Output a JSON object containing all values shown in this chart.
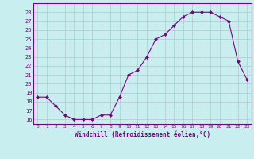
{
  "x": [
    0,
    1,
    2,
    3,
    4,
    5,
    6,
    7,
    8,
    9,
    10,
    11,
    12,
    13,
    14,
    15,
    16,
    17,
    18,
    19,
    20,
    21,
    22,
    23
  ],
  "y": [
    18.5,
    18.5,
    17.5,
    16.5,
    16.0,
    16.0,
    16.0,
    16.5,
    16.5,
    18.5,
    21.0,
    21.5,
    23.0,
    25.0,
    25.5,
    26.5,
    27.5,
    28.0,
    28.0,
    28.0,
    27.5,
    27.0,
    22.5,
    20.5
  ],
  "ylim": [
    15.5,
    29.0
  ],
  "xlim": [
    -0.5,
    23.5
  ],
  "yticks": [
    16,
    17,
    18,
    19,
    20,
    21,
    22,
    23,
    24,
    25,
    26,
    27,
    28
  ],
  "xticks": [
    0,
    1,
    2,
    3,
    4,
    5,
    6,
    7,
    8,
    9,
    10,
    11,
    12,
    13,
    14,
    15,
    16,
    17,
    18,
    19,
    20,
    21,
    22,
    23
  ],
  "line_color": "#800080",
  "marker_color": "#800080",
  "bg_color": "#c8eef0",
  "grid_color": "#b0c8c8",
  "xlabel": "Windchill (Refroidissement éolien,°C)",
  "xlabel_color": "#800080",
  "fig_bg": "#c8eef0",
  "tick_label_color": "#800080",
  "spine_color": "#800080"
}
